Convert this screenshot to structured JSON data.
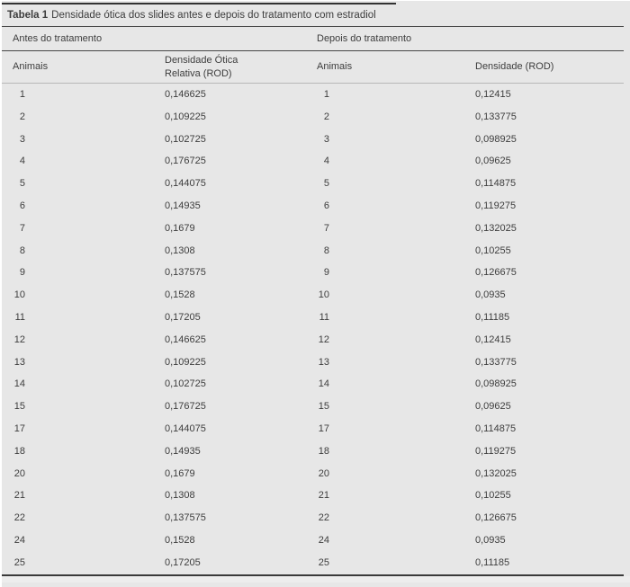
{
  "table": {
    "label": "Tabela 1",
    "title": "Densidade ótica dos slides antes e depois do tratamento com estradiol",
    "group_before": "Antes do tratamento",
    "group_after": "Depois do tratamento",
    "col_animals_before": "Animais",
    "col_rod_before": "Densidade Ótica Relativa (ROD)",
    "col_animals_after": "Animais",
    "col_rod_after": "Densidade (ROD)",
    "rows": [
      {
        "animal": "1",
        "before": "0,146625",
        "after": "0,12415"
      },
      {
        "animal": "2",
        "before": "0,109225",
        "after": "0,133775"
      },
      {
        "animal": "3",
        "before": "0,102725",
        "after": "0,098925"
      },
      {
        "animal": "4",
        "before": "0,176725",
        "after": "0,09625"
      },
      {
        "animal": "5",
        "before": "0,144075",
        "after": "0,114875"
      },
      {
        "animal": "6",
        "before": "0,14935",
        "after": "0,119275"
      },
      {
        "animal": "7",
        "before": "0,1679",
        "after": "0,132025"
      },
      {
        "animal": "8",
        "before": "0,1308",
        "after": "0,10255"
      },
      {
        "animal": "9",
        "before": "0,137575",
        "after": "0,126675"
      },
      {
        "animal": "10",
        "before": "0,1528",
        "after": "0,0935"
      },
      {
        "animal": "11",
        "before": "0,17205",
        "after": "0,11185"
      },
      {
        "animal": "12",
        "before": "0,146625",
        "after": "0,12415"
      },
      {
        "animal": "13",
        "before": "0,109225",
        "after": "0,133775"
      },
      {
        "animal": "14",
        "before": "0,102725",
        "after": "0,098925"
      },
      {
        "animal": "15",
        "before": "0,176725",
        "after": "0,09625"
      },
      {
        "animal": "17",
        "before": "0,144075",
        "after": "0,114875"
      },
      {
        "animal": "18",
        "before": "0,14935",
        "after": "0,119275"
      },
      {
        "animal": "20",
        "before": "0,1679",
        "after": "0,132025"
      },
      {
        "animal": "21",
        "before": "0,1308",
        "after": "0,10255"
      },
      {
        "animal": "22",
        "before": "0,137575",
        "after": "0,126675"
      },
      {
        "animal": "24",
        "before": "0,1528",
        "after": "0,0935"
      },
      {
        "animal": "25",
        "before": "0,17205",
        "after": "0,11185"
      }
    ],
    "colors": {
      "sheet_background": "#e7e7e7",
      "rule_dark": "#474747",
      "rule_light": "#b8b8b8",
      "text": "#3d3d3d"
    }
  }
}
